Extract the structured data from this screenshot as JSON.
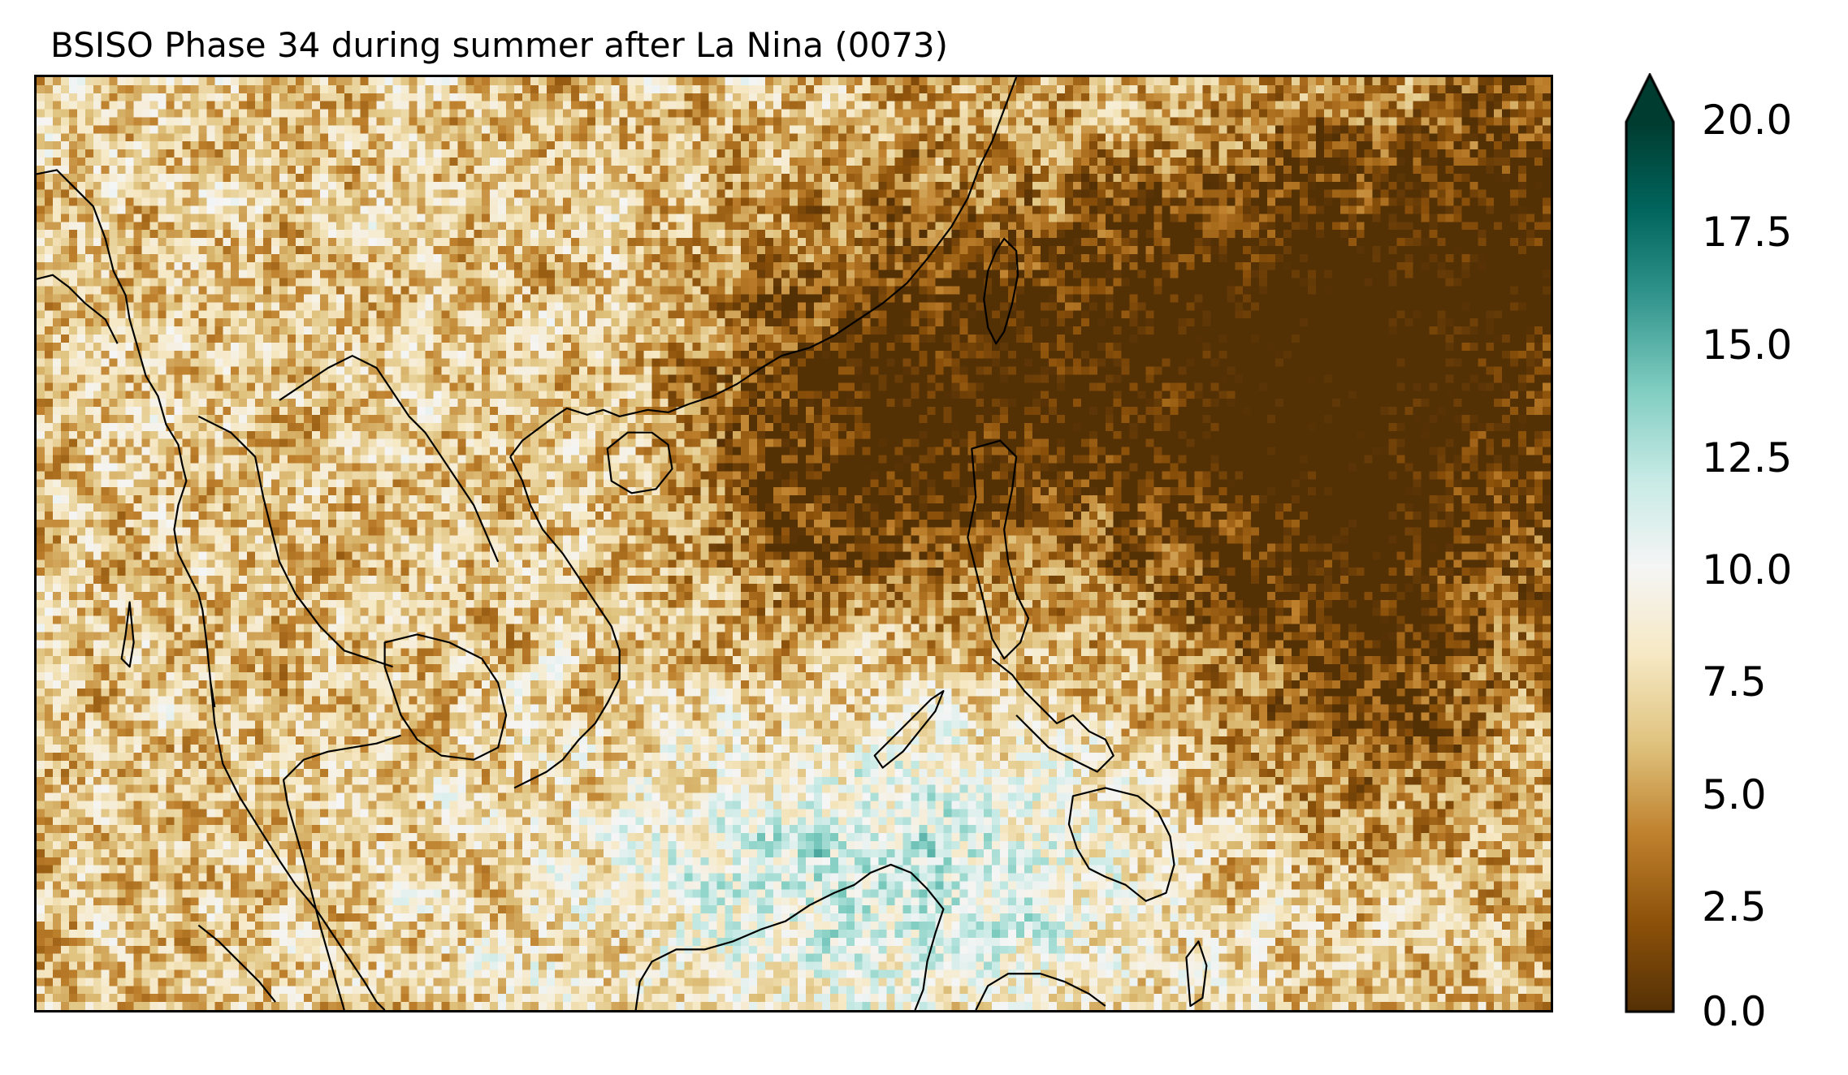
{
  "title": "BSISO Phase 34 during summer after La Nina  (0073)",
  "colorbar": {
    "colormap": "BrBG",
    "vmin": 0.0,
    "vmax": 20.0,
    "extend": "max",
    "ticks": [
      "0.0",
      "2.5",
      "5.0",
      "7.5",
      "10.0",
      "12.5",
      "15.0",
      "17.5",
      "20.0"
    ]
  },
  "map": {
    "region": "Southeast Asia",
    "coastlines": true,
    "coastline_color": "#000000"
  },
  "colors": {
    "brown_dark": "#543005",
    "brown": "#8c510a",
    "tan": "#bf812d",
    "sand": "#dfc27d",
    "cream": "#f6e8c3",
    "white": "#f5f5f5",
    "mint": "#c7eae5",
    "teal_light": "#80cdc1",
    "teal": "#35978f",
    "teal_dark": "#01665e",
    "teal_darkest": "#003c30"
  }
}
